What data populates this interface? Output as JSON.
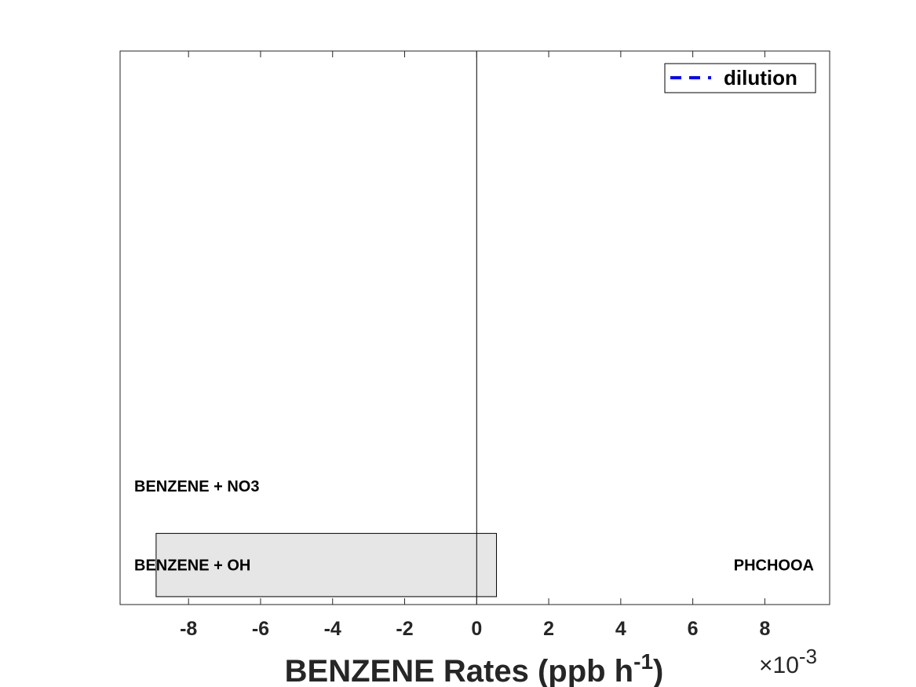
{
  "chart_data": {
    "type": "bar",
    "orientation": "horizontal",
    "categories": [
      "BENZENE + OH",
      "BENZENE + NO3"
    ],
    "series": [
      {
        "values": [
          -0.0089,
          0
        ],
        "positive_values": [
          0.00055,
          0
        ],
        "color": "#e6e6e6"
      }
    ],
    "right_labels": [
      "PHCHOOA",
      ""
    ],
    "xlabel": "BENZENE Rates (ppb h",
    "xlabel_sup": "-1",
    "xlabel_close": ")",
    "x_exponent_prefix": "×10",
    "x_exponent": "-3",
    "xlim": [
      -0.0099,
      0.0098
    ],
    "xticks": [
      -0.008,
      -0.006,
      -0.004,
      -0.002,
      0,
      0.002,
      0.004,
      0.006,
      0.008
    ],
    "xtick_labels": [
      "-8",
      "-6",
      "-4",
      "-2",
      "0",
      "2",
      "4",
      "6",
      "8"
    ],
    "ylim": [
      0.5,
      7.5
    ],
    "legend": {
      "entries": [
        {
          "label": "dilution",
          "color": "#0000ff",
          "style": "dashed"
        }
      ],
      "placement": "top-right"
    },
    "grid": false
  }
}
